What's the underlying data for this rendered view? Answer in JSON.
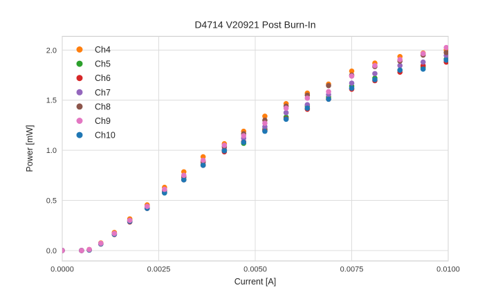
{
  "figure": {
    "background": "#ffffff"
  },
  "chart_data": {
    "type": "scatter",
    "title": "D4714 V20921 Post Burn-In",
    "xlabel": "Current [A]",
    "ylabel": "Power [mW]",
    "grid": true,
    "legend_position": "upper left",
    "legend_frame": false,
    "xlim": [
      0.0,
      0.01
    ],
    "ylim": [
      -0.104,
      2.137
    ],
    "xticks": {
      "values": [
        0.0,
        0.0025,
        0.005,
        0.0075,
        0.01
      ],
      "labels": [
        "0.0000",
        "0.0025",
        "0.0050",
        "0.0075",
        "0.0100"
      ]
    },
    "yticks": {
      "values": [
        0.0,
        0.5,
        1.0,
        1.5,
        2.0
      ],
      "labels": [
        "0.0",
        "0.5",
        "1.0",
        "1.5",
        "2.0"
      ]
    },
    "x": [
      0.0,
      0.0005,
      0.0007,
      0.001,
      0.00135,
      0.00175,
      0.0022,
      0.00265,
      0.00315,
      0.00365,
      0.0042,
      0.0047,
      0.00525,
      0.0058,
      0.00635,
      0.0069,
      0.0075,
      0.0081,
      0.00875,
      0.00935,
      0.00995
    ],
    "series": [
      {
        "name": "Ch4",
        "color": "#ff7f0e",
        "values": [
          0,
          0,
          0.01,
          0.075,
          0.18,
          0.315,
          0.455,
          0.63,
          0.785,
          0.935,
          1.065,
          1.19,
          1.34,
          1.465,
          1.57,
          1.66,
          1.79,
          1.87,
          1.935,
          1.97,
          2.0
        ]
      },
      {
        "name": "Ch5",
        "color": "#2ca02c",
        "values": [
          0,
          0,
          0.005,
          0.068,
          0.165,
          0.295,
          0.425,
          0.575,
          0.71,
          0.855,
          1.0,
          1.07,
          1.21,
          1.33,
          1.44,
          1.53,
          1.64,
          1.72,
          1.8,
          1.83,
          1.91
        ]
      },
      {
        "name": "Ch6",
        "color": "#d62728",
        "values": [
          0,
          0,
          0.005,
          0.065,
          0.16,
          0.285,
          0.42,
          0.58,
          0.705,
          0.85,
          0.985,
          1.085,
          1.2,
          1.315,
          1.41,
          1.51,
          1.61,
          1.695,
          1.78,
          1.845,
          1.88
        ]
      },
      {
        "name": "Ch7",
        "color": "#9467bd",
        "values": [
          0,
          0,
          0.005,
          0.068,
          0.165,
          0.3,
          0.435,
          0.59,
          0.73,
          0.875,
          1.01,
          1.12,
          1.235,
          1.375,
          1.455,
          1.555,
          1.67,
          1.765,
          1.845,
          1.88,
          1.945
        ]
      },
      {
        "name": "Ch8",
        "color": "#8c564b",
        "values": [
          0,
          0,
          0.005,
          0.07,
          0.17,
          0.3,
          0.44,
          0.6,
          0.735,
          0.885,
          1.035,
          1.165,
          1.3,
          1.44,
          1.55,
          1.645,
          1.75,
          1.835,
          1.89,
          1.95,
          1.975
        ]
      },
      {
        "name": "Ch9",
        "color": "#e377c2",
        "values": [
          0,
          0,
          0.01,
          0.072,
          0.17,
          0.3,
          0.44,
          0.61,
          0.75,
          0.9,
          1.05,
          1.145,
          1.27,
          1.42,
          1.52,
          1.585,
          1.74,
          1.845,
          1.905,
          1.965,
          2.025
        ]
      },
      {
        "name": "Ch10",
        "color": "#1f77b4",
        "values": [
          0,
          0,
          0.005,
          0.066,
          0.162,
          0.29,
          0.42,
          0.575,
          0.705,
          0.85,
          0.995,
          1.08,
          1.19,
          1.31,
          1.42,
          1.51,
          1.62,
          1.705,
          1.8,
          1.81,
          1.9
        ]
      }
    ],
    "draw_order": [
      "Ch4",
      "Ch5",
      "Ch6",
      "Ch7",
      "Ch8",
      "Ch10",
      "Ch9"
    ]
  }
}
